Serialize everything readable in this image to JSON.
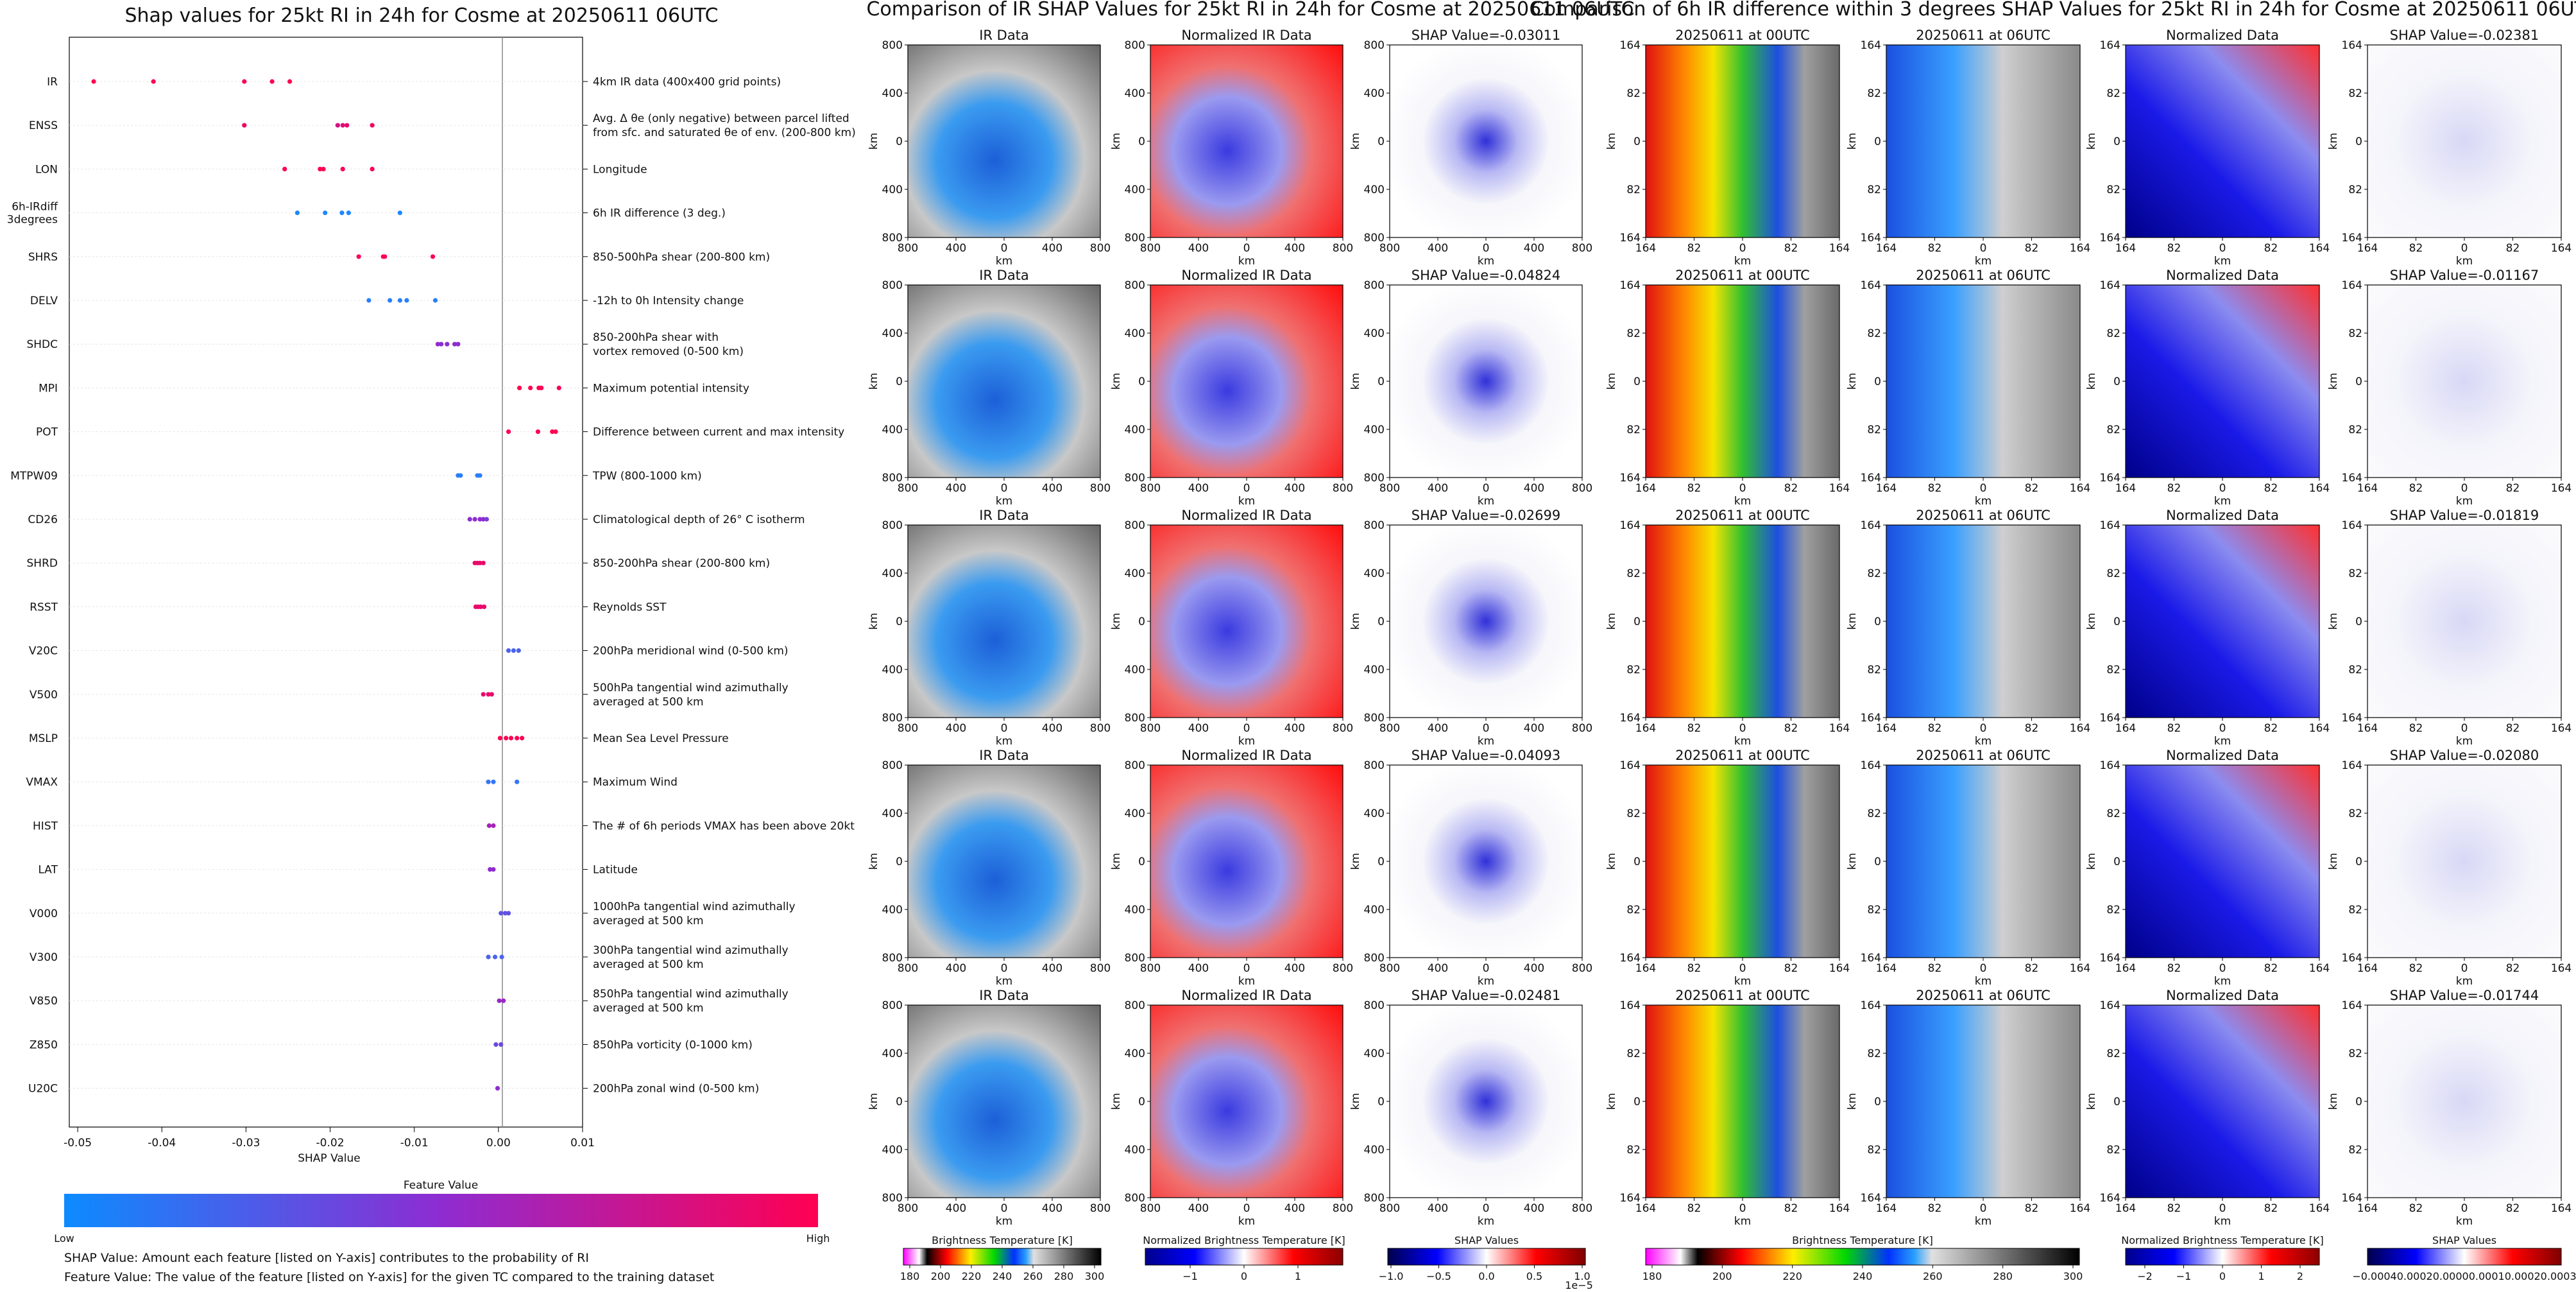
{
  "left_panel": {
    "title": "Shap values for 25kt RI in 24h for Cosme at 20250611 06UTC",
    "xlabel": "SHAP Value",
    "colorbar_title": "Feature Value",
    "colorbar_low": "Low",
    "colorbar_high": "High",
    "colors": {
      "low": "#1e88ff",
      "mid": "#8e2cd1",
      "high": "#ff0052"
    },
    "notes": [
      "SHAP Value: Amount each feature [listed on Y-axis] contributes to the probability of RI",
      "Feature Value: The value of the feature [listed on Y-axis] for the given TC compared to the training dataset"
    ]
  },
  "chart_data": [
    {
      "type": "scatter",
      "title": "Shap values for 25kt RI in 24h for Cosme at 20250611 06UTC",
      "xlabel": "SHAP Value",
      "xlim": [
        -0.051,
        0.01
      ],
      "xticks": [
        "-0.05",
        "-0.04",
        "-0.03",
        "-0.02",
        "-0.01",
        "0.00",
        "0.01"
      ],
      "xtick_values": [
        -0.05,
        -0.04,
        -0.03,
        -0.02,
        -0.01,
        0.0,
        0.01
      ],
      "features": [
        {
          "name": "IR",
          "desc": [
            "4km IR data (400x400 grid points)"
          ],
          "points": [
            [
              -0.0481,
              1
            ],
            [
              -0.041,
              1
            ],
            [
              -0.0302,
              1
            ],
            [
              -0.0269,
              1
            ],
            [
              -0.0248,
              1
            ]
          ]
        },
        {
          "name": "ENSS",
          "desc": [
            "Avg. Δ θe (only negative) between parcel lifted",
            "from sfc. and saturated θe of env. (200-800 km)"
          ],
          "points": [
            [
              -0.0302,
              0.95
            ],
            [
              -0.0191,
              0.8
            ],
            [
              -0.0185,
              0.85
            ],
            [
              -0.018,
              0.9
            ],
            [
              -0.015,
              0.95
            ]
          ]
        },
        {
          "name": "LON",
          "desc": [
            "Longitude"
          ],
          "points": [
            [
              -0.0254,
              1
            ],
            [
              -0.0212,
              1
            ],
            [
              -0.0208,
              1
            ],
            [
              -0.0185,
              1
            ],
            [
              -0.015,
              1
            ]
          ]
        },
        {
          "name": "6h-IRdiff 3degrees",
          "desc": [
            "6h IR difference (3 deg.)"
          ],
          "points": [
            [
              -0.0239,
              0
            ],
            [
              -0.0206,
              0
            ],
            [
              -0.0186,
              0
            ],
            [
              -0.0178,
              0
            ],
            [
              -0.0117,
              0
            ]
          ]
        },
        {
          "name": "SHRS",
          "desc": [
            "850-500hPa shear (200-800 km)"
          ],
          "points": [
            [
              -0.0166,
              1
            ],
            [
              -0.0137,
              1
            ],
            [
              -0.0135,
              1
            ],
            [
              -0.0078,
              1
            ]
          ]
        },
        {
          "name": "DELV",
          "desc": [
            "-12h to 0h Intensity change"
          ],
          "points": [
            [
              -0.0154,
              0.05
            ],
            [
              -0.0129,
              0.05
            ],
            [
              -0.0117,
              0.05
            ],
            [
              -0.0109,
              0.05
            ],
            [
              -0.0075,
              0.05
            ]
          ]
        },
        {
          "name": "SHDC",
          "desc": [
            "850-200hPa shear with",
            "vortex removed (0-500 km)"
          ],
          "points": [
            [
              -0.0072,
              0.5
            ],
            [
              -0.0068,
              0.5
            ],
            [
              -0.0061,
              0.5
            ],
            [
              -0.0052,
              0.5
            ],
            [
              -0.0048,
              0.5
            ]
          ]
        },
        {
          "name": "MPI",
          "desc": [
            "Maximum potential intensity"
          ],
          "points": [
            [
              0.0025,
              1
            ],
            [
              0.0038,
              1
            ],
            [
              0.0048,
              1
            ],
            [
              0.0051,
              1
            ],
            [
              0.0072,
              1
            ]
          ]
        },
        {
          "name": "POT",
          "desc": [
            "Difference between current and max intensity"
          ],
          "points": [
            [
              0.0012,
              1
            ],
            [
              0.0047,
              1
            ],
            [
              0.0064,
              1
            ],
            [
              0.0068,
              1
            ]
          ]
        },
        {
          "name": "MTPW09",
          "desc": [
            "TPW (800-1000 km)"
          ],
          "points": [
            [
              -0.0048,
              0.05
            ],
            [
              -0.0045,
              0.05
            ],
            [
              -0.0025,
              0.05
            ],
            [
              -0.0022,
              0.05
            ]
          ]
        },
        {
          "name": "CD26",
          "desc": [
            "Climatological depth of 26° C isotherm"
          ],
          "points": [
            [
              -0.0034,
              0.5
            ],
            [
              -0.0028,
              0.5
            ],
            [
              -0.0022,
              0.5
            ],
            [
              -0.0018,
              0.5
            ],
            [
              -0.0014,
              0.4
            ]
          ]
        },
        {
          "name": "SHRD",
          "desc": [
            "850-200hPa shear (200-800 km)"
          ],
          "points": [
            [
              -0.0028,
              0.9
            ],
            [
              -0.0025,
              0.9
            ],
            [
              -0.0022,
              0.9
            ],
            [
              -0.0018,
              0.9
            ]
          ]
        },
        {
          "name": "RSST",
          "desc": [
            "Reynolds SST"
          ],
          "points": [
            [
              -0.0027,
              0.9
            ],
            [
              -0.0024,
              0.9
            ],
            [
              -0.0021,
              0.9
            ],
            [
              -0.0017,
              0.9
            ]
          ]
        },
        {
          "name": "V20C",
          "desc": [
            "200hPa meridional wind (0-500 km)"
          ],
          "points": [
            [
              0.0012,
              0.2
            ],
            [
              0.0018,
              0.2
            ],
            [
              0.0024,
              0.2
            ]
          ]
        },
        {
          "name": "V500",
          "desc": [
            "500hPa tangential wind azimuthally",
            "averaged at 500 km"
          ],
          "points": [
            [
              -0.0018,
              0.9
            ],
            [
              -0.0012,
              0.9
            ],
            [
              -0.0008,
              0.9
            ]
          ]
        },
        {
          "name": "MSLP",
          "desc": [
            "Mean Sea Level Pressure"
          ],
          "points": [
            [
              0.0002,
              1
            ],
            [
              0.0009,
              1
            ],
            [
              0.0015,
              1
            ],
            [
              0.0022,
              1
            ],
            [
              0.0028,
              1
            ]
          ]
        },
        {
          "name": "VMAX",
          "desc": [
            "Maximum Wind"
          ],
          "points": [
            [
              -0.0012,
              0.1
            ],
            [
              -0.0006,
              0.1
            ],
            [
              0.0022,
              0.1
            ]
          ]
        },
        {
          "name": "HIST",
          "desc": [
            "The # of 6h periods VMAX has been above 20kt"
          ],
          "points": [
            [
              -0.0011,
              0.6
            ],
            [
              -0.0006,
              0.6
            ]
          ]
        },
        {
          "name": "LAT",
          "desc": [
            "Latitude"
          ],
          "points": [
            [
              -0.001,
              0.5
            ],
            [
              -0.0006,
              0.5
            ]
          ]
        },
        {
          "name": "V000",
          "desc": [
            "1000hPa tangential wind azimuthally",
            "averaged at 500 km"
          ],
          "points": [
            [
              0.0003,
              0.3
            ],
            [
              0.0008,
              0.3
            ],
            [
              0.0012,
              0.3
            ]
          ]
        },
        {
          "name": "V300",
          "desc": [
            "300hPa tangential wind azimuthally",
            "averaged at 500 km"
          ],
          "points": [
            [
              -0.0012,
              0.2
            ],
            [
              -0.0004,
              0.2
            ],
            [
              0.0004,
              0.2
            ]
          ]
        },
        {
          "name": "V850",
          "desc": [
            "850hPa tangential wind azimuthally",
            "averaged at 500 km"
          ],
          "points": [
            [
              0.0001,
              0.55
            ],
            [
              0.0006,
              0.55
            ]
          ]
        },
        {
          "name": "Z850",
          "desc": [
            "850hPa vorticity (0-1000 km)"
          ],
          "points": [
            [
              -0.0003,
              0.35
            ],
            [
              0.0003,
              0.35
            ]
          ]
        },
        {
          "name": "U20C",
          "desc": [
            "200hPa zonal wind (0-500 km)"
          ],
          "points": [
            [
              -0.0001,
              0.5
            ]
          ]
        }
      ]
    },
    {
      "type": "heatmap",
      "title": "Comparison of IR SHAP Values for 25kt RI in 24h for Cosme at 20250611 06UTC",
      "columns": [
        {
          "key": "ir",
          "kind": "ir",
          "titles": [
            "IR Data",
            "IR Data",
            "IR Data",
            "IR Data",
            "IR Data"
          ]
        },
        {
          "key": "nir",
          "kind": "nir",
          "titles": [
            "Normalized IR Data",
            "Normalized IR Data",
            "Normalized IR Data",
            "Normalized IR Data",
            "Normalized IR Data"
          ]
        },
        {
          "key": "shap",
          "kind": "shap",
          "titles": [
            "SHAP Value=-0.03011",
            "SHAP Value=-0.04824",
            "SHAP Value=-0.02699",
            "SHAP Value=-0.04093",
            "SHAP Value=-0.02481"
          ]
        }
      ],
      "xticks": [
        "800",
        "400",
        "0",
        "400",
        "800"
      ],
      "yticks": [
        "800",
        "400",
        "0",
        "400",
        "800"
      ],
      "axis_label": "km",
      "colorbars": [
        {
          "label": "Brightness Temperature [K]",
          "kind": "ir",
          "ticks": [
            "180",
            "200",
            "220",
            "240",
            "260",
            "280",
            "300"
          ]
        },
        {
          "label": "Normalized Brightness Temperature [K]",
          "kind": "nir",
          "ticks": [
            "−1",
            "0",
            "1"
          ]
        },
        {
          "label": "SHAP Values",
          "kind": "shap",
          "ticks": [
            "−1.0",
            "−0.5",
            "0.0",
            "0.5",
            "1.0"
          ],
          "offset": "1e−5"
        }
      ]
    },
    {
      "type": "heatmap",
      "title": "Comparison of 6h IR difference within 3 degrees SHAP Values for 25kt RI in 24h for Cosme at 20250611 06UTC",
      "columns": [
        {
          "key": "t00",
          "kind": "ir",
          "titles": [
            "20250611 at 00UTC",
            "20250611 at 00UTC",
            "20250611 at 00UTC",
            "20250611 at 00UTC",
            "20250611 at 00UTC"
          ]
        },
        {
          "key": "t06",
          "kind": "ir",
          "titles": [
            "20250611 at 06UTC",
            "20250611 at 06UTC",
            "20250611 at 06UTC",
            "20250611 at 06UTC",
            "20250611 at 06UTC"
          ]
        },
        {
          "key": "nd",
          "kind": "nir",
          "titles": [
            "Normalized Data",
            "Normalized Data",
            "Normalized Data",
            "Normalized Data",
            "Normalized Data"
          ]
        },
        {
          "key": "shap",
          "kind": "shap",
          "titles": [
            "SHAP Value=-0.02381",
            "SHAP Value=-0.01167",
            "SHAP Value=-0.01819",
            "SHAP Value=-0.02080",
            "SHAP Value=-0.01744"
          ]
        }
      ],
      "xticks": [
        "164",
        "82",
        "0",
        "82",
        "164"
      ],
      "yticks": [
        "164",
        "82",
        "0",
        "82",
        "164"
      ],
      "axis_label": "km",
      "colorbars": [
        {
          "label": "Brightness Temperature [K]",
          "kind": "ir",
          "ticks": [
            "180",
            "200",
            "220",
            "240",
            "260",
            "280",
            "300"
          ]
        },
        {
          "label": "Normalized Brightness Temperature [K]",
          "kind": "nir",
          "ticks": [
            "−2",
            "−1",
            "0",
            "1",
            "2"
          ]
        },
        {
          "label": "SHAP Values",
          "kind": "shap",
          "ticks": [
            "−0.0004",
            "0.0002",
            "0.0000",
            "0.0001",
            "0.0002",
            "0.0003"
          ],
          "tick_strip": "−0.00040.00020.00000.00010.00020.0003"
        }
      ]
    }
  ]
}
